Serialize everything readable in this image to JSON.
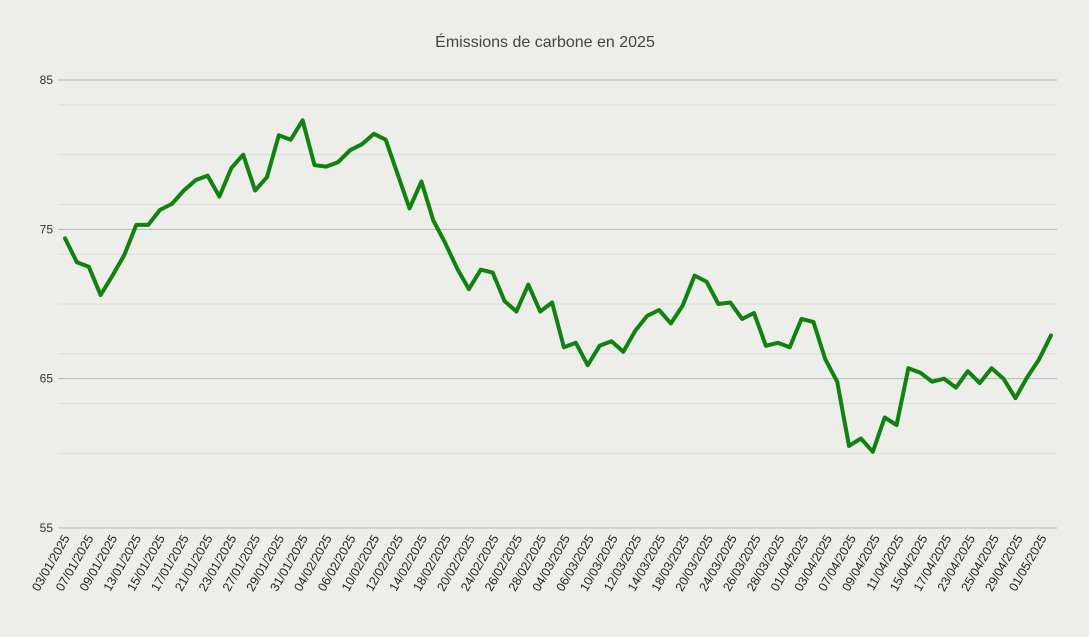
{
  "chart_data": {
    "type": "line",
    "title": "Émissions de carbone en 2025",
    "xlabel": "",
    "ylabel": "",
    "ylim": [
      55,
      85
    ],
    "yticks": [
      55,
      65,
      75,
      85
    ],
    "grid": true,
    "legend": "none",
    "series_color": "#0f820f",
    "series": [
      {
        "name": "Émissions de carbone",
        "values": [
          74.4,
          72.8,
          72.5,
          70.6,
          71.9,
          73.3,
          75.3,
          75.3,
          76.3,
          76.7,
          77.6,
          78.3,
          78.6,
          77.2,
          79.1,
          80.0,
          77.6,
          78.5,
          81.3,
          81.0,
          82.3,
          79.3,
          79.2,
          79.5,
          80.3,
          80.7,
          81.4,
          81.0,
          78.7,
          76.4,
          78.2,
          75.6,
          74.1,
          72.4,
          71.0,
          72.3,
          72.1,
          70.2,
          69.5,
          71.3,
          69.5,
          70.1,
          67.1,
          67.4,
          65.9,
          67.2,
          67.5,
          66.8,
          68.2,
          69.2,
          69.6,
          68.7,
          69.9,
          71.9,
          71.5,
          70.0,
          70.1,
          69.0,
          69.4,
          67.2,
          67.4,
          67.1,
          69.0,
          68.8,
          66.3,
          64.8,
          60.5,
          61.0,
          60.1,
          62.4,
          61.9,
          65.7,
          65.4,
          64.8,
          65.0,
          64.4,
          65.5,
          64.7,
          65.7,
          65.0,
          63.7,
          65.1,
          66.3,
          67.9
        ]
      }
    ],
    "x_tick_labels": [
      "03/01/2025",
      "07/01/2025",
      "09/01/2025",
      "13/01/2025",
      "15/01/2025",
      "17/01/2025",
      "21/01/2025",
      "23/01/2025",
      "27/01/2025",
      "29/01/2025",
      "31/01/2025",
      "04/02/2025",
      "06/02/2025",
      "10/02/2025",
      "12/02/2025",
      "14/02/2025",
      "18/02/2025",
      "20/02/2025",
      "24/02/2025",
      "26/02/2025",
      "28/02/2025",
      "04/03/2025",
      "06/03/2025",
      "10/03/2025",
      "12/03/2025",
      "14/03/2025",
      "18/03/2025",
      "20/03/2025",
      "24/03/2025",
      "26/03/2025",
      "28/03/2025",
      "01/04/2025",
      "03/04/2025",
      "07/04/2025",
      "09/04/2025",
      "11/04/2025",
      "15/04/2025",
      "17/04/2025",
      "23/04/2025",
      "25/04/2025",
      "29/04/2025",
      "01/05/2025"
    ]
  }
}
